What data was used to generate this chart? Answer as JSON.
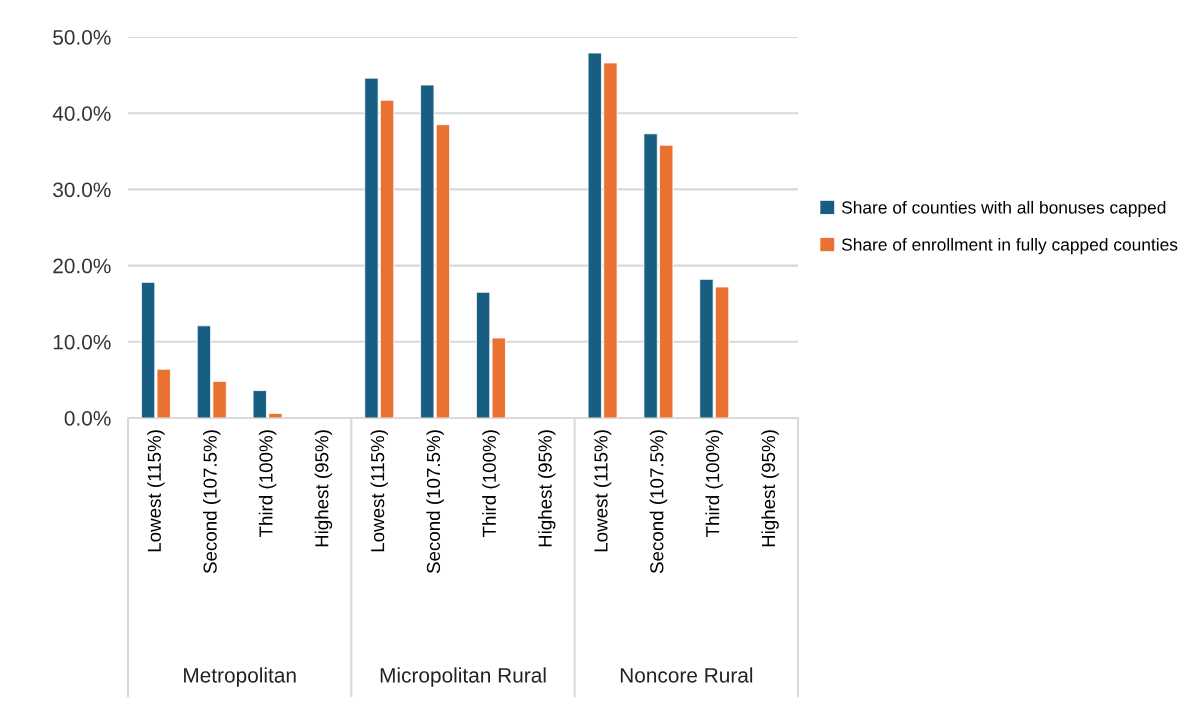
{
  "chart_data": {
    "type": "bar",
    "categories": [
      "Lowest (115%)",
      "Second (107.5%)",
      "Third (100%)",
      "Highest (95%)",
      "Lowest (115%)",
      "Second (107.5%)",
      "Third (100%)",
      "Highest (95%)",
      "Lowest (115%)",
      "Second (107.5%)",
      "Third (100%)",
      "Highest (95%)"
    ],
    "series": [
      {
        "name": "Share of counties with all bonuses capped",
        "color": "#175e82",
        "values": [
          17.8,
          12.1,
          3.6,
          null,
          44.6,
          43.7,
          16.5,
          null,
          47.9,
          37.3,
          18.2,
          null
        ]
      },
      {
        "name": "Share of enrollment in fully capped counties",
        "color": "#e97132",
        "values": [
          6.4,
          4.8,
          0.6,
          null,
          41.7,
          38.5,
          10.5,
          null,
          46.6,
          35.8,
          17.2,
          null
        ]
      }
    ],
    "annotations": [
      "Metropolitan",
      "Micropolitan Rural",
      "Noncore Rural"
    ],
    "ylim": [
      0,
      50
    ],
    "yticks": [
      {
        "value": 0,
        "label": "0.0%"
      },
      {
        "value": 10,
        "label": "10.0%"
      },
      {
        "value": 20,
        "label": "20.0%"
      },
      {
        "value": 30,
        "label": "30.0%"
      },
      {
        "value": 40,
        "label": "40.0%"
      },
      {
        "value": 50,
        "label": "50.0%"
      }
    ],
    "grid": "y",
    "legend": "right"
  }
}
